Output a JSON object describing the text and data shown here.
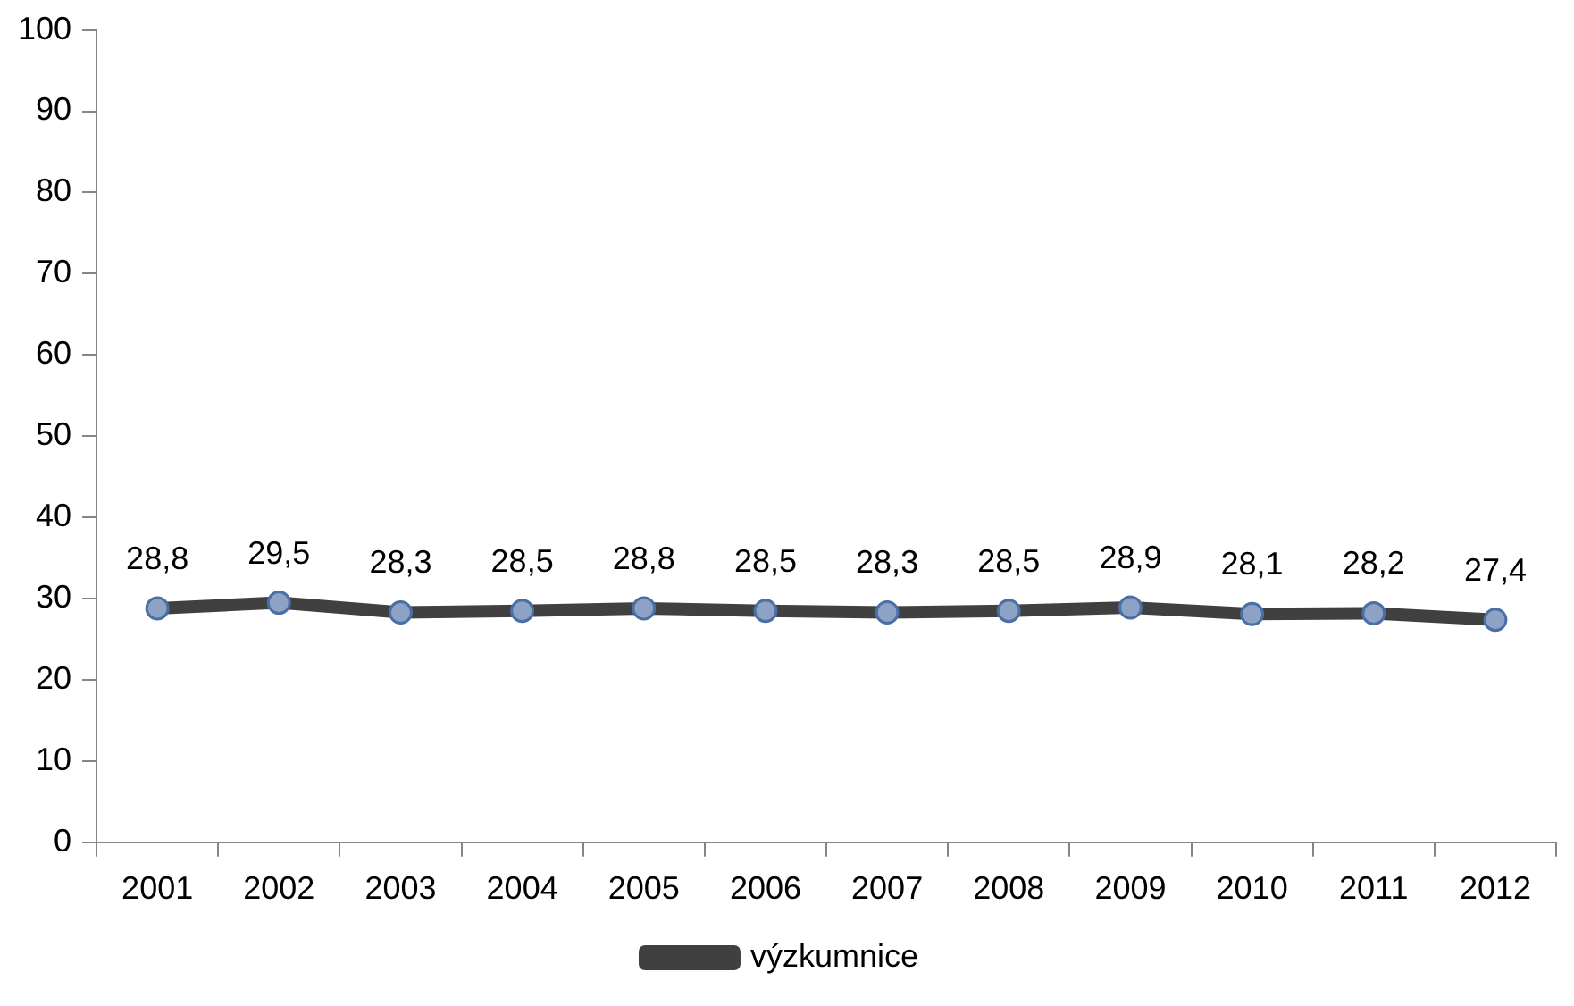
{
  "chart_data": {
    "type": "line",
    "categories": [
      "2001",
      "2002",
      "2003",
      "2004",
      "2005",
      "2006",
      "2007",
      "2008",
      "2009",
      "2010",
      "2011",
      "2012"
    ],
    "series": [
      {
        "name": "výzkumnice",
        "color": "#404040",
        "values": [
          28.8,
          29.5,
          28.3,
          28.5,
          28.8,
          28.5,
          28.3,
          28.5,
          28.9,
          28.1,
          28.2,
          27.4
        ],
        "value_labels": [
          "28,8",
          "29,5",
          "28,3",
          "28,5",
          "28,8",
          "28,5",
          "28,3",
          "28,5",
          "28,9",
          "28,1",
          "28,2",
          "27,4"
        ]
      }
    ],
    "ylim": [
      0,
      100
    ],
    "yticks": [
      0,
      10,
      20,
      30,
      40,
      50,
      60,
      70,
      80,
      90,
      100
    ],
    "grid": false,
    "legend": "bottom",
    "marker": "circle",
    "line_style": "solid"
  }
}
